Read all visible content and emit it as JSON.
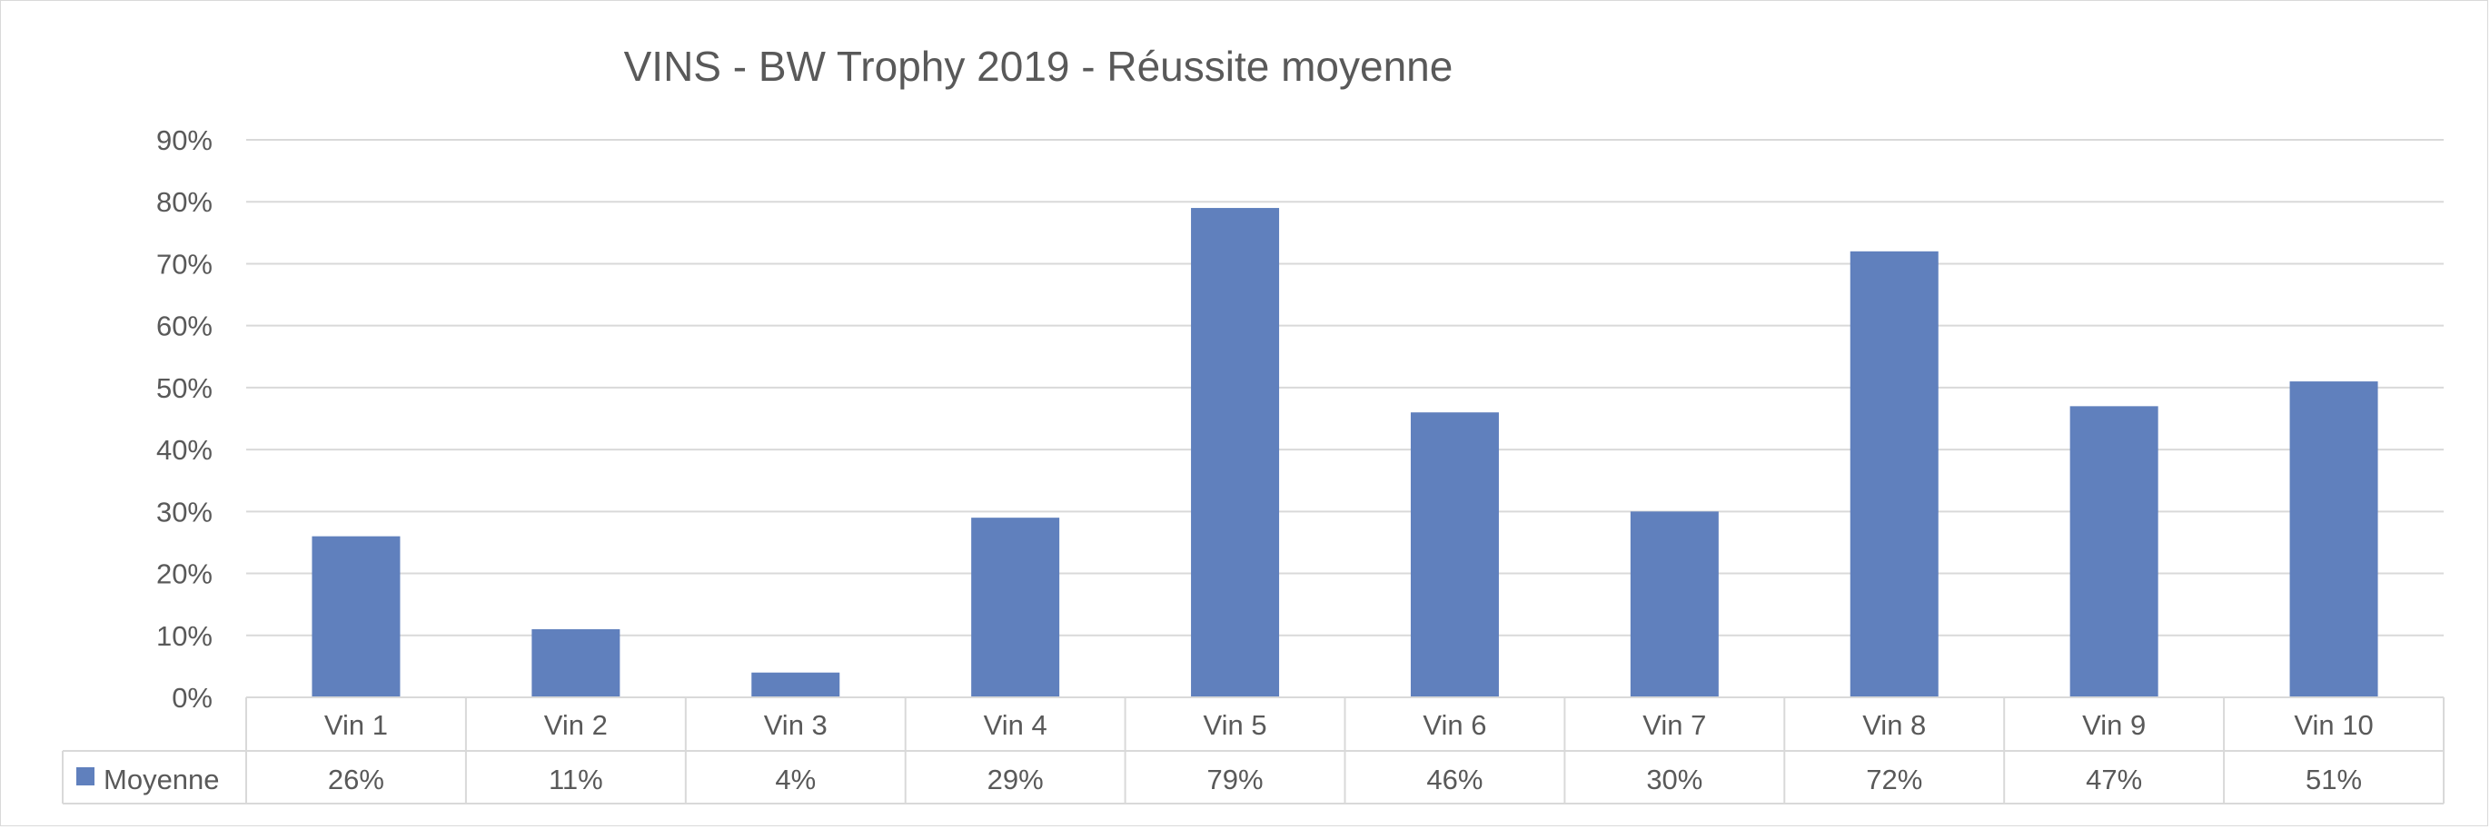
{
  "chart_data": {
    "type": "bar",
    "title": "VINS - BW Trophy 2019 - Réussite moyenne",
    "categories": [
      "Vin 1",
      "Vin 2",
      "Vin 3",
      "Vin 4",
      "Vin 5",
      "Vin 6",
      "Vin 7",
      "Vin 8",
      "Vin 9",
      "Vin 10"
    ],
    "series": [
      {
        "name": "Moyenne",
        "values": [
          0.26,
          0.11,
          0.04,
          0.29,
          0.79,
          0.46,
          0.3,
          0.72,
          0.47,
          0.51
        ],
        "labels": [
          "26%",
          "11%",
          "4%",
          "29%",
          "79%",
          "46%",
          "30%",
          "72%",
          "47%",
          "51%"
        ],
        "color": "#6080bd"
      }
    ],
    "ylim": [
      0,
      0.9
    ],
    "yticks": [
      "0%",
      "10%",
      "20%",
      "30%",
      "40%",
      "50%",
      "60%",
      "70%",
      "80%",
      "90%"
    ],
    "grid": true,
    "data_table": true,
    "gridline_color": "#d9d9d9"
  }
}
